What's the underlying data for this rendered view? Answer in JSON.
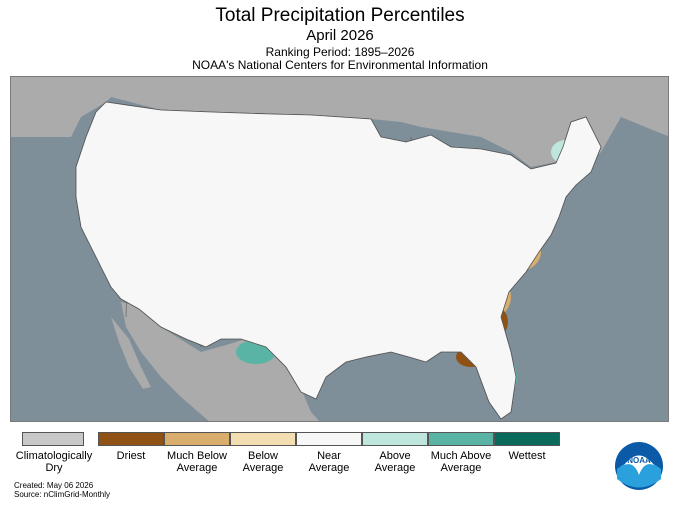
{
  "header": {
    "title": "Total Precipitation Percentiles",
    "subtitle": "April 2026",
    "ranking": "Ranking Period: 1895–2026",
    "org": "NOAA's National Centers for Environmental Information"
  },
  "legend": {
    "dry": {
      "label_line1": "Climatologically",
      "label_line2": "Dry",
      "color": "#c8c8c8"
    },
    "categories": [
      {
        "line1": "Driest",
        "line2": "",
        "color": "#8f5214"
      },
      {
        "line1": "Much Below",
        "line2": "Average",
        "color": "#d9ad6c"
      },
      {
        "line1": "Below",
        "line2": "Average",
        "color": "#f3deb2"
      },
      {
        "line1": "Near",
        "line2": "Average",
        "color": "#f7f7f7"
      },
      {
        "line1": "Above",
        "line2": "Average",
        "color": "#bfe6dc"
      },
      {
        "line1": "Much Above",
        "line2": "Average",
        "color": "#5ab4a6"
      },
      {
        "line1": "Wettest",
        "line2": "",
        "color": "#0a6b5d"
      }
    ]
  },
  "footer": {
    "created": "Created: May 06 2026",
    "source": "Source: nClimGrid-Monthly"
  },
  "logo": {
    "text": "NOAA",
    "color": "#0a5aa8"
  },
  "colors": {
    "ocean": "#7f8f9a",
    "land_outside": "#ababab",
    "us_base": "#f7f7f7"
  }
}
